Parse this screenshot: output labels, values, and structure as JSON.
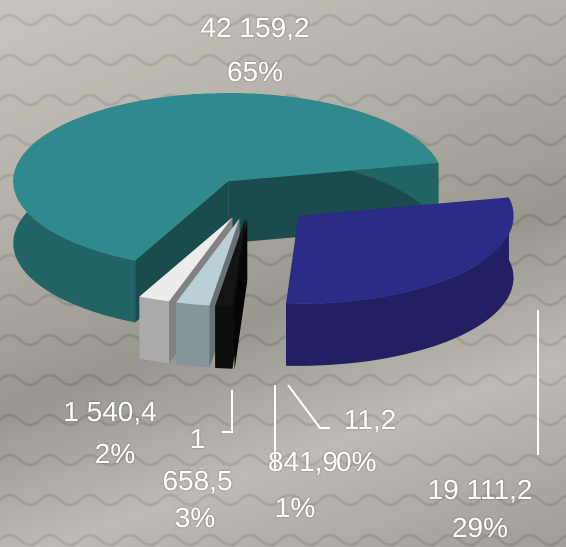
{
  "chart_data": {
    "type": "pie",
    "values": [
      19111.2,
      11.2,
      841.9,
      1658.5,
      1540.4,
      42159.2
    ],
    "value_labels": [
      "19 111,2",
      "11,2",
      "841,9",
      "1 658,5",
      "1 540,4",
      "42 159,2"
    ],
    "percent_labels": [
      "29%",
      "0%",
      "1%",
      "3%",
      "2%",
      "65%"
    ],
    "colors": [
      "#2c2c88",
      "#0a0a0a",
      "#141414",
      "#b9d0d6",
      "#ececec",
      "#2f8a8e"
    ]
  }
}
